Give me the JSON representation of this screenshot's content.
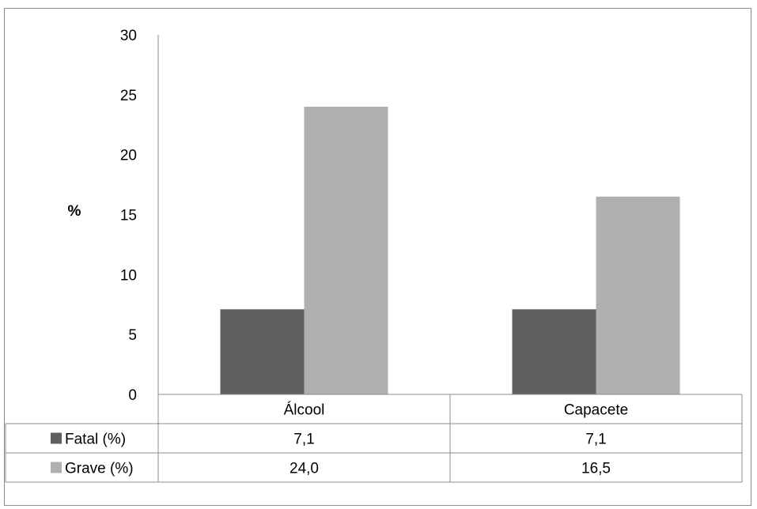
{
  "chart_data": {
    "type": "bar",
    "ylabel": "%",
    "ylim": [
      0,
      30
    ],
    "yticks": [
      "0",
      "5",
      "10",
      "15",
      "20",
      "25",
      "30"
    ],
    "grid": false,
    "legend": "data-table",
    "categories": [
      "Álcool",
      "Capacete"
    ],
    "series": [
      {
        "name": "Fatal (%)",
        "color": "#606060",
        "values": [
          7.1,
          7.1
        ],
        "labels": [
          "7,1",
          "7,1"
        ]
      },
      {
        "name": "Grave (%)",
        "color": "#b0b0b0",
        "values": [
          24.0,
          16.5
        ],
        "labels": [
          "24,0",
          "16,5"
        ]
      }
    ]
  }
}
